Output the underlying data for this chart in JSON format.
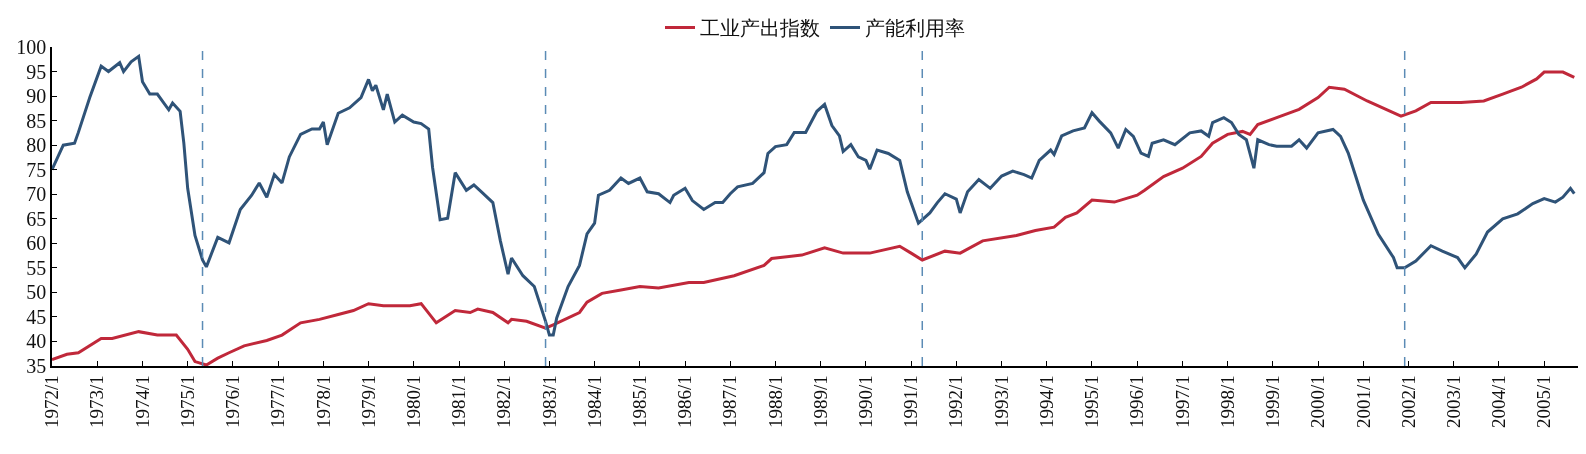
{
  "chart_data": {
    "type": "line",
    "legend": "top",
    "grid": false,
    "line_style": "solid",
    "marker": "none",
    "xlim": [
      "1972-01",
      "2005-10"
    ],
    "ylim": [
      35,
      100
    ],
    "yticks": [
      35,
      40,
      45,
      50,
      55,
      60,
      65,
      70,
      75,
      80,
      85,
      90,
      95,
      100
    ],
    "xticks": [
      {
        "value": "1972-01",
        "label": "1972/1"
      },
      {
        "value": "1973-01",
        "label": "1973/1"
      },
      {
        "value": "1974-01",
        "label": "1974/1"
      },
      {
        "value": "1975-01",
        "label": "1975/1"
      },
      {
        "value": "1976-01",
        "label": "1976/1"
      },
      {
        "value": "1977-01",
        "label": "1977/1"
      },
      {
        "value": "1978-01",
        "label": "1978/1"
      },
      {
        "value": "1979-01",
        "label": "1979/1"
      },
      {
        "value": "1980-01",
        "label": "1980/1"
      },
      {
        "value": "1981-01",
        "label": "1981/1"
      },
      {
        "value": "1982-01",
        "label": "1982/1"
      },
      {
        "value": "1983-01",
        "label": "1983/1"
      },
      {
        "value": "1984-01",
        "label": "1984/1"
      },
      {
        "value": "1985-01",
        "label": "1985/1"
      },
      {
        "value": "1986-01",
        "label": "1986/1"
      },
      {
        "value": "1987-01",
        "label": "1987/1"
      },
      {
        "value": "1988-01",
        "label": "1988/1"
      },
      {
        "value": "1989-01",
        "label": "1989/1"
      },
      {
        "value": "1990-01",
        "label": "1990/1"
      },
      {
        "value": "1991-01",
        "label": "1991/1"
      },
      {
        "value": "1992-01",
        "label": "1992/1"
      },
      {
        "value": "1993-01",
        "label": "1993/1"
      },
      {
        "value": "1994-01",
        "label": "1994/1"
      },
      {
        "value": "1995-01",
        "label": "1995/1"
      },
      {
        "value": "1996-01",
        "label": "1996/1"
      },
      {
        "value": "1997-01",
        "label": "1997/1"
      },
      {
        "value": "1998-01",
        "label": "1998/1"
      },
      {
        "value": "1999-01",
        "label": "1999/1"
      },
      {
        "value": "2000-01",
        "label": "2000/1"
      },
      {
        "value": "2001-01",
        "label": "2001/1"
      },
      {
        "value": "2002-01",
        "label": "2002/1"
      },
      {
        "value": "2003-01",
        "label": "2003/1"
      },
      {
        "value": "2004-01",
        "label": "2004/1"
      },
      {
        "value": "2005-01",
        "label": "2005/1"
      }
    ],
    "ref_lines": [
      {
        "axis": "x",
        "value": "1975-05",
        "color": "#5b8bb5",
        "line_style": "dashed"
      },
      {
        "axis": "x",
        "value": "1982-12",
        "color": "#5b8bb5",
        "line_style": "dashed"
      },
      {
        "axis": "x",
        "value": "1991-04",
        "color": "#5b8bb5",
        "line_style": "dashed"
      },
      {
        "axis": "x",
        "value": "2001-12",
        "color": "#5b8bb5",
        "line_style": "dashed"
      }
    ],
    "series": [
      {
        "name": "工业产出指数",
        "color": "#c0283a",
        "x": [
          "1972-01",
          "1972-05",
          "1972-08",
          "1973-02",
          "1973-05",
          "1973-12",
          "1974-05",
          "1974-10",
          "1975-01",
          "1975-03",
          "1975-06",
          "1975-09",
          "1975-12",
          "1976-04",
          "1976-10",
          "1977-02",
          "1977-07",
          "1977-12",
          "1978-05",
          "1978-09",
          "1979-01",
          "1979-05",
          "1979-12",
          "1980-03",
          "1980-07",
          "1980-12",
          "1981-04",
          "1981-06",
          "1981-10",
          "1982-02",
          "1982-03",
          "1982-07",
          "1982-12",
          "1983-02",
          "1983-09",
          "1983-11",
          "1984-03",
          "1984-08",
          "1985-01",
          "1985-06",
          "1986-02",
          "1986-06",
          "1987-02",
          "1987-10",
          "1987-12",
          "1988-08",
          "1989-02",
          "1989-07",
          "1990-02",
          "1990-10",
          "1991-01",
          "1991-04",
          "1991-10",
          "1992-02",
          "1992-08",
          "1993-05",
          "1993-10",
          "1994-03",
          "1994-06",
          "1994-09",
          "1995-01",
          "1995-07",
          "1996-01",
          "1996-03",
          "1996-08",
          "1997-01",
          "1997-06",
          "1997-09",
          "1998-01",
          "1998-05",
          "1998-07",
          "1998-09",
          "1999-02",
          "1999-08",
          "2000-01",
          "2000-04",
          "2000-08",
          "2001-02",
          "2001-11",
          "2002-03",
          "2002-07",
          "2003-03",
          "2003-09",
          "2004-02",
          "2004-07",
          "2004-11",
          "2005-01",
          "2005-06",
          "2005-09"
        ],
        "values": [
          36.3,
          37.4,
          37.7,
          40.6,
          40.6,
          42,
          41.3,
          41.3,
          38.4,
          35.9,
          35.2,
          36.6,
          37.7,
          39.1,
          40.2,
          41.3,
          43.8,
          44.5,
          45.5,
          46.3,
          47.7,
          47.3,
          47.3,
          47.7,
          43.8,
          46.3,
          45.9,
          46.6,
          45.9,
          43.8,
          44.5,
          44.1,
          42.7,
          43.4,
          45.9,
          48,
          49.8,
          50.5,
          51.2,
          50.9,
          52,
          52,
          53.4,
          55.5,
          56.9,
          57.6,
          59.1,
          58,
          58,
          59.4,
          58,
          56.6,
          58.4,
          58,
          60.5,
          61.6,
          62.6,
          63.3,
          65.3,
          66.2,
          68.8,
          68.4,
          69.8,
          70.8,
          73.6,
          75.3,
          77.7,
          80.4,
          82.2,
          82.8,
          82.2,
          84.2,
          85.6,
          87.3,
          89.7,
          91.8,
          91.4,
          89,
          85.9,
          87,
          88.7,
          88.7,
          89,
          90.4,
          91.8,
          93.5,
          94.9,
          94.9,
          93.8
        ]
      },
      {
        "name": "产能利用率",
        "color": "#2f5378",
        "x": [
          "1972-01",
          "1972-04",
          "1972-07",
          "1972-08",
          "1972-11",
          "1973-02",
          "1973-04",
          "1973-07",
          "1973-08",
          "1973-10",
          "1973-12",
          "1974-01",
          "1974-03",
          "1974-05",
          "1974-08",
          "1974-09",
          "1974-11",
          "1974-12",
          "1975-01",
          "1975-03",
          "1975-05",
          "1975-06",
          "1975-09",
          "1975-12",
          "1976-03",
          "1976-06",
          "1976-08",
          "1976-10",
          "1976-12",
          "1977-02",
          "1977-04",
          "1977-07",
          "1977-10",
          "1977-12",
          "1978-01",
          "1978-02",
          "1978-05",
          "1978-08",
          "1978-11",
          "1979-01",
          "1979-02",
          "1979-03",
          "1979-05",
          "1979-06",
          "1979-08",
          "1979-10",
          "1980-01",
          "1980-03",
          "1980-05",
          "1980-06",
          "1980-08",
          "1980-10",
          "1980-12",
          "1981-03",
          "1981-05",
          "1981-07",
          "1981-10",
          "1981-12",
          "1982-02",
          "1982-03",
          "1982-06",
          "1982-09",
          "1982-12",
          "1983-01",
          "1983-02",
          "1983-03",
          "1983-06",
          "1983-09",
          "1983-11",
          "1984-01",
          "1984-02",
          "1984-05",
          "1984-08",
          "1984-10",
          "1985-01",
          "1985-03",
          "1985-06",
          "1985-09",
          "1985-10",
          "1986-01",
          "1986-03",
          "1986-06",
          "1986-09",
          "1986-11",
          "1987-01",
          "1987-03",
          "1987-07",
          "1987-10",
          "1987-11",
          "1988-01",
          "1988-04",
          "1988-06",
          "1988-09",
          "1988-12",
          "1989-02",
          "1989-04",
          "1989-06",
          "1989-07",
          "1989-09",
          "1989-11",
          "1990-01",
          "1990-02",
          "1990-04",
          "1990-07",
          "1990-10",
          "1990-12",
          "1991-03",
          "1991-06",
          "1991-08",
          "1991-10",
          "1992-01",
          "1992-02",
          "1992-04",
          "1992-07",
          "1992-10",
          "1993-01",
          "1993-04",
          "1993-07",
          "1993-09",
          "1993-11",
          "1994-02",
          "1994-03",
          "1994-05",
          "1994-08",
          "1994-11",
          "1995-01",
          "1995-03",
          "1995-06",
          "1995-08",
          "1995-10",
          "1995-12",
          "1996-02",
          "1996-04",
          "1996-05",
          "1996-08",
          "1996-11",
          "1997-03",
          "1997-06",
          "1997-08",
          "1997-09",
          "1997-12",
          "1998-02",
          "1998-04",
          "1998-06",
          "1998-08",
          "1998-09",
          "1998-12",
          "1999-02",
          "1999-06",
          "1999-08",
          "1999-10",
          "2000-01",
          "2000-05",
          "2000-07",
          "2000-09",
          "2000-11",
          "2001-01",
          "2001-05",
          "2001-09",
          "2001-10",
          "2001-12",
          "2002-03",
          "2002-07",
          "2002-10",
          "2003-02",
          "2003-04",
          "2003-07",
          "2003-10",
          "2004-02",
          "2004-06",
          "2004-10",
          "2005-01",
          "2005-04",
          "2005-06",
          "2005-08",
          "2005-09"
        ],
        "values": [
          75,
          80,
          80.4,
          82.6,
          89.7,
          96.1,
          95,
          96.8,
          95,
          97,
          98.1,
          92.9,
          90.4,
          90.4,
          87.2,
          88.6,
          86.9,
          80.4,
          71.2,
          61.6,
          56.6,
          55.2,
          61.2,
          60.1,
          66.9,
          69.8,
          72.3,
          69.4,
          74,
          72.3,
          77.6,
          82.2,
          83.3,
          83.3,
          84.7,
          80.1,
          86.5,
          87.6,
          89.7,
          93.4,
          91.1,
          92.2,
          87.2,
          90.4,
          84.7,
          86.1,
          84.7,
          84.4,
          83.3,
          75.5,
          64.8,
          65.1,
          74.4,
          70.8,
          71.9,
          70.5,
          68.3,
          60.5,
          53.7,
          57,
          53.4,
          51.2,
          44.1,
          41.3,
          41.3,
          44.8,
          51.2,
          55.5,
          61.9,
          64.1,
          69.8,
          70.8,
          73.3,
          72.2,
          73.3,
          70.5,
          70.1,
          68.3,
          69.8,
          71.2,
          68.7,
          66.9,
          68.3,
          68.3,
          70.1,
          71.5,
          72.2,
          74.4,
          78.3,
          79.7,
          80.1,
          82.6,
          82.6,
          86.9,
          88.3,
          84,
          81.9,
          78.7,
          80.1,
          77.6,
          76.9,
          75.1,
          79,
          78.3,
          76.9,
          70.5,
          64.1,
          66.2,
          68.3,
          70.1,
          69,
          66.2,
          70.5,
          73,
          71.2,
          73.7,
          74.7,
          74,
          73.3,
          76.9,
          79,
          78.1,
          81.9,
          82.9,
          83.5,
          86.6,
          84.9,
          82.5,
          79.4,
          83.2,
          81.8,
          78.4,
          77.7,
          80.4,
          81.1,
          80.1,
          82.5,
          82.9,
          81.8,
          84.6,
          85.6,
          84.6,
          82.2,
          81.1,
          75.3,
          81.1,
          80.1,
          79.8,
          79.8,
          81.1,
          79.4,
          82.5,
          83.2,
          81.8,
          78.4,
          73.6,
          68.8,
          61.9,
          57.1,
          55,
          55,
          56.4,
          59.5,
          58.4,
          57.1,
          55,
          57.8,
          62.3,
          65,
          66,
          68.1,
          69.1,
          68.4,
          69.4,
          71.2,
          70.1
        ]
      }
    ]
  }
}
